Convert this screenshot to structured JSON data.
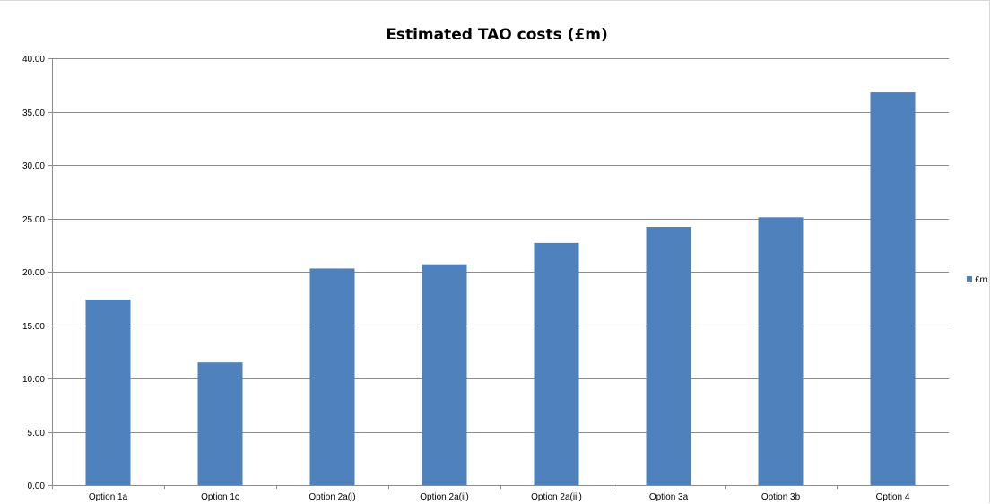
{
  "chart_data": {
    "type": "bar",
    "title": "Estimated TAO costs (£m)",
    "xlabel": "",
    "ylabel": "",
    "categories": [
      "Option 1a",
      "Option 1c",
      "Option 2a(i)",
      "Option 2a(ii)",
      "Option 2a(iii)",
      "Option 3a",
      "Option 3b",
      "Option 4"
    ],
    "series": [
      {
        "name": "£m",
        "color": "#4f81bd",
        "values": [
          17.4,
          11.5,
          20.3,
          20.7,
          22.7,
          24.2,
          25.1,
          36.8
        ]
      }
    ],
    "ylim": [
      0,
      40
    ],
    "yticks": [
      "0.00",
      "5.00",
      "10.00",
      "15.00",
      "20.00",
      "25.00",
      "30.00",
      "35.00",
      "40.00"
    ],
    "ytick_values": [
      0,
      5,
      10,
      15,
      20,
      25,
      30,
      35,
      40
    ],
    "grid": true,
    "legend_position": "right",
    "colors": {
      "gridline": "#8c8c8c",
      "axis": "#8c8c8c",
      "bar": "#4f81bd"
    }
  }
}
